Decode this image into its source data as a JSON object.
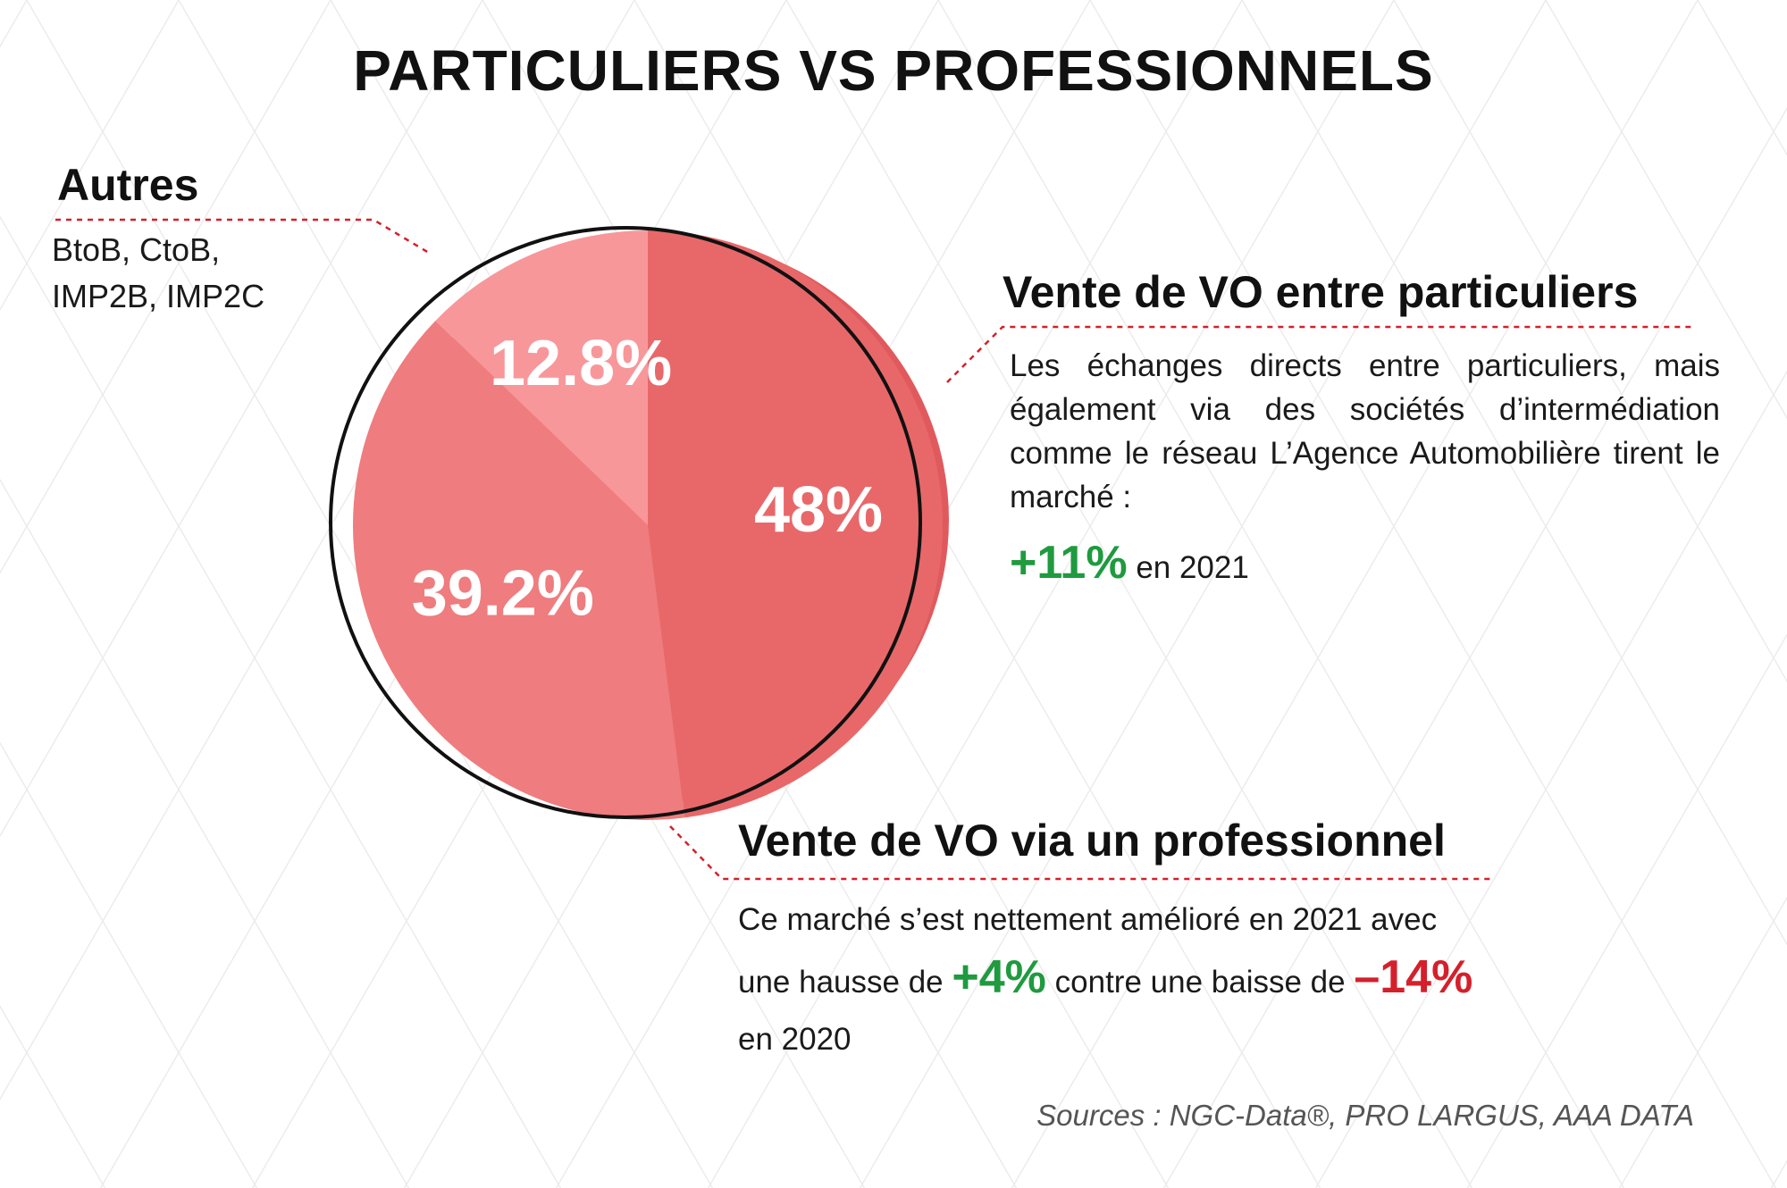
{
  "title": "PARTICULIERS VS PROFESSIONNELS",
  "chart_data": {
    "type": "pie",
    "title": "PARTICULIERS VS PROFESSIONNELS",
    "unit": "%",
    "slices": [
      {
        "name": "Vente de VO entre particuliers",
        "value": 48,
        "label": "48%",
        "color": "#e8686a"
      },
      {
        "name": "Vente de VO via un professionnel",
        "value": 39.2,
        "label": "39.2%",
        "color": "#ef7c7e"
      },
      {
        "name": "Autres",
        "value": 12.8,
        "label": "12.8%",
        "color": "#f8979a"
      }
    ]
  },
  "autres": {
    "heading": "Autres",
    "line1": "BtoB, CtoB,",
    "line2": "IMP2B, IMP2C"
  },
  "particuliers": {
    "heading": "Vente de VO entre particuliers",
    "description": "Les échanges directs entre particuliers, mais également via des sociétés d’intermédiation comme le réseau L’Agence Automobilière tirent le marché :",
    "stat_value": "+11%",
    "stat_suffix": "en 2021"
  },
  "professionnel": {
    "heading": "Vente de VO via un professionnel",
    "text_before": "Ce marché s’est nettement amélioré en 2021 avec une hausse de",
    "increase": "+4%",
    "text_middle": "contre une baisse de",
    "decrease": "–14%",
    "text_after": "en 2020"
  },
  "sources": "Sources : NGC-Data®, PRO LARGUS, AAA DATA",
  "colors": {
    "accent_red": "#d4202b",
    "positive_green": "#1f9a3f",
    "shadow_red": "#e05a5d"
  }
}
